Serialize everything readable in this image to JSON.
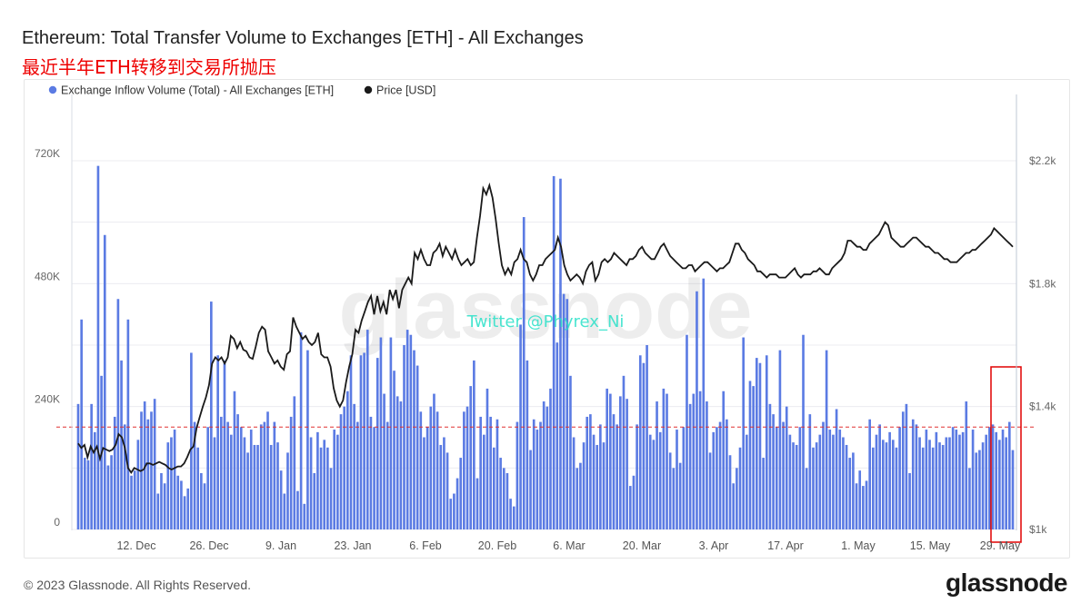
{
  "header": {
    "title": "Ethereum: Total Transfer Volume to Exchanges [ETH] - All Exchanges",
    "subtitle": "最近半年ETH转移到交易所抛压"
  },
  "footer": {
    "copyright": "© 2023 Glassnode. All Rights Reserved.",
    "brand": "glassnode"
  },
  "watermark": {
    "logo": "glassnode",
    "twitter": "Twitter @Phyrex_Ni"
  },
  "colors": {
    "bars": "#5b7be3",
    "price_line": "#1a1a1a",
    "threshold_line": "#e03030",
    "highlight_box": "#e00000",
    "subtitle": "#ee0000",
    "twitter": "#29e0c8"
  },
  "chart_data": {
    "type": "bar+line",
    "legend": [
      {
        "name": "Exchange Inflow Volume (Total) - All Exchanges [ETH]",
        "marker": "circle",
        "color": "#5b7be3"
      },
      {
        "name": "Price [USD]",
        "marker": "circle",
        "color": "#1a1a1a"
      }
    ],
    "legend_position": "top-left",
    "x_ticks": [
      "12. Dec",
      "26. Dec",
      "9. Jan",
      "23. Jan",
      "6. Feb",
      "20. Feb",
      "6. Mar",
      "20. Mar",
      "3. Apr",
      "17. Apr",
      "1. May",
      "15. May",
      "29. May"
    ],
    "x_range": [
      "2022-12-01",
      "2023-06-01"
    ],
    "left_axis": {
      "ticks": [
        0,
        240000,
        480000,
        720000
      ],
      "tick_labels": [
        "0",
        "240K",
        "480K",
        "720K"
      ],
      "range": [
        0,
        720000
      ]
    },
    "right_axis": {
      "ticks": [
        1000,
        1400,
        1800,
        2200
      ],
      "tick_labels": [
        "$1k",
        "$1.4k",
        "$1.8k",
        "$2.2k"
      ],
      "range": [
        1000,
        2200
      ]
    },
    "grid": true,
    "threshold_value": 200000,
    "series": [
      {
        "name": "Exchange Inflow Volume (Total) - All Exchanges [ETH]",
        "kind": "bar",
        "axis": "left",
        "values": [
          245000,
          410000,
          140000,
          135000,
          245000,
          190000,
          710000,
          300000,
          575000,
          125000,
          145000,
          220000,
          450000,
          330000,
          205000,
          410000,
          105000,
          115000,
          175000,
          230000,
          250000,
          215000,
          230000,
          255000,
          70000,
          110000,
          90000,
          170000,
          180000,
          195000,
          105000,
          95000,
          65000,
          80000,
          345000,
          210000,
          160000,
          110000,
          90000,
          200000,
          445000,
          180000,
          340000,
          220000,
          330000,
          210000,
          185000,
          270000,
          225000,
          200000,
          180000,
          150000,
          195000,
          165000,
          165000,
          205000,
          210000,
          230000,
          165000,
          210000,
          170000,
          115000,
          70000,
          150000,
          220000,
          260000,
          75000,
          385000,
          50000,
          350000,
          180000,
          110000,
          190000,
          160000,
          175000,
          160000,
          120000,
          195000,
          185000,
          225000,
          240000,
          270000,
          340000,
          245000,
          210000,
          340000,
          345000,
          390000,
          220000,
          200000,
          335000,
          375000,
          265000,
          210000,
          375000,
          310000,
          260000,
          250000,
          360000,
          390000,
          380000,
          350000,
          320000,
          230000,
          180000,
          200000,
          240000,
          265000,
          230000,
          165000,
          180000,
          150000,
          60000,
          70000,
          100000,
          140000,
          230000,
          240000,
          280000,
          330000,
          100000,
          220000,
          185000,
          275000,
          220000,
          160000,
          215000,
          140000,
          120000,
          110000,
          60000,
          45000,
          210000,
          400000,
          610000,
          330000,
          155000,
          215000,
          195000,
          210000,
          250000,
          240000,
          275000,
          690000,
          365000,
          685000,
          460000,
          450000,
          300000,
          180000,
          120000,
          130000,
          170000,
          220000,
          225000,
          185000,
          165000,
          205000,
          170000,
          275000,
          265000,
          225000,
          205000,
          260000,
          300000,
          255000,
          85000,
          105000,
          205000,
          340000,
          325000,
          360000,
          185000,
          175000,
          250000,
          190000,
          275000,
          265000,
          150000,
          120000,
          195000,
          130000,
          200000,
          380000,
          245000,
          265000,
          465000,
          270000,
          490000,
          250000,
          150000,
          190000,
          200000,
          210000,
          270000,
          215000,
          145000,
          90000,
          120000,
          160000,
          375000,
          185000,
          290000,
          280000,
          335000,
          325000,
          140000,
          340000,
          245000,
          225000,
          200000,
          350000,
          210000,
          240000,
          185000,
          170000,
          165000,
          200000,
          380000,
          120000,
          225000,
          160000,
          170000,
          185000,
          210000,
          350000,
          195000,
          185000,
          235000,
          195000,
          180000,
          165000,
          140000,
          150000,
          90000,
          115000,
          85000,
          95000,
          215000,
          160000,
          185000,
          205000,
          175000,
          170000,
          190000,
          175000,
          160000,
          200000,
          230000,
          245000,
          110000,
          215000,
          205000,
          180000,
          160000,
          195000,
          175000,
          160000,
          190000,
          170000,
          165000,
          180000,
          180000,
          200000,
          195000,
          185000,
          190000,
          250000,
          120000,
          195000,
          150000,
          155000,
          170000,
          185000,
          200000,
          205000,
          190000,
          175000,
          195000,
          180000,
          210000,
          155000
        ],
        "bar_values": [
          245000,
          410000,
          140000,
          135000,
          245000,
          190000,
          710000,
          300000,
          575000,
          125000,
          145000,
          220000,
          450000,
          330000,
          205000,
          410000,
          105000,
          115000,
          175000,
          230000,
          250000,
          215000,
          230000,
          255000,
          70000,
          110000,
          90000,
          170000,
          180000,
          195000,
          105000,
          95000,
          65000,
          80000,
          345000,
          210000,
          160000,
          110000,
          90000,
          200000,
          445000,
          180000,
          340000,
          220000,
          330000,
          210000,
          185000,
          270000,
          225000,
          200000,
          180000,
          150000,
          195000,
          165000,
          165000,
          205000,
          210000,
          230000,
          165000,
          210000,
          170000,
          115000,
          70000,
          150000,
          220000,
          260000,
          75000,
          385000,
          50000,
          350000,
          180000,
          110000,
          190000,
          160000,
          175000,
          160000,
          120000,
          195000,
          185000,
          225000,
          240000,
          270000,
          340000,
          245000,
          210000,
          340000,
          345000,
          390000,
          220000,
          200000,
          335000,
          375000,
          265000,
          210000,
          375000,
          310000,
          260000,
          250000,
          360000,
          390000,
          380000,
          350000,
          320000,
          230000,
          180000,
          200000,
          240000,
          265000,
          230000,
          165000,
          180000,
          150000,
          60000,
          70000,
          100000,
          140000,
          230000,
          240000,
          280000,
          330000,
          100000,
          220000,
          185000,
          275000,
          220000,
          160000,
          215000,
          140000,
          120000,
          110000,
          60000,
          45000,
          210000,
          400000,
          610000,
          330000,
          155000,
          215000,
          195000,
          210000,
          250000,
          240000,
          275000,
          690000,
          365000,
          685000,
          460000,
          450000,
          300000,
          180000,
          120000,
          130000,
          170000,
          220000,
          225000,
          185000,
          165000,
          205000,
          170000,
          275000,
          265000,
          225000,
          205000,
          260000,
          300000,
          255000,
          85000,
          105000,
          205000,
          340000,
          325000,
          360000,
          185000,
          175000,
          250000,
          190000,
          275000,
          265000,
          150000,
          120000,
          195000,
          130000,
          200000,
          380000,
          245000,
          265000,
          465000,
          270000,
          490000,
          250000,
          150000,
          190000,
          200000,
          210000,
          270000,
          215000,
          145000,
          90000,
          120000,
          160000,
          375000,
          185000,
          290000,
          280000,
          335000,
          325000,
          140000,
          340000,
          245000,
          225000,
          200000,
          350000,
          210000,
          240000,
          185000,
          170000,
          165000,
          200000,
          380000,
          120000,
          225000,
          160000,
          170000,
          185000,
          210000,
          350000,
          195000,
          185000,
          235000,
          195000,
          180000,
          165000,
          140000,
          150000,
          90000,
          115000,
          85000,
          95000,
          215000,
          160000,
          185000,
          205000,
          175000,
          170000,
          190000,
          175000,
          160000,
          200000,
          230000,
          245000,
          110000,
          215000,
          205000,
          180000,
          160000,
          195000,
          175000,
          160000,
          190000,
          170000,
          165000,
          180000,
          180000,
          200000,
          195000,
          185000,
          190000,
          250000,
          120000,
          195000,
          150000,
          155000,
          170000,
          185000,
          200000,
          205000,
          190000,
          175000,
          195000,
          180000,
          210000,
          155000
        ]
      },
      {
        "name": "Price [USD]",
        "kind": "line",
        "axis": "right",
        "values": [
          1280,
          1265,
          1275,
          1235,
          1270,
          1250,
          1270,
          1230,
          1265,
          1260,
          1255,
          1260,
          1275,
          1310,
          1300,
          1265,
          1200,
          1185,
          1200,
          1195,
          1190,
          1195,
          1215,
          1215,
          1210,
          1215,
          1220,
          1215,
          1210,
          1200,
          1195,
          1200,
          1205,
          1205,
          1215,
          1235,
          1260,
          1270,
          1330,
          1365,
          1400,
          1430,
          1470,
          1540,
          1560,
          1550,
          1560,
          1540,
          1560,
          1630,
          1620,
          1590,
          1610,
          1585,
          1580,
          1560,
          1555,
          1595,
          1640,
          1660,
          1650,
          1580,
          1560,
          1540,
          1550,
          1530,
          1520,
          1570,
          1580,
          1690,
          1660,
          1640,
          1620,
          1630,
          1610,
          1600,
          1610,
          1640,
          1570,
          1560,
          1560,
          1530,
          1460,
          1420,
          1400,
          1420,
          1480,
          1530,
          1570,
          1650,
          1640,
          1680,
          1710,
          1740,
          1760,
          1700,
          1760,
          1710,
          1740,
          1700,
          1780,
          1750,
          1780,
          1720,
          1780,
          1800,
          1820,
          1800,
          1900,
          1880,
          1910,
          1880,
          1860,
          1860,
          1900,
          1910,
          1930,
          1890,
          1920,
          1900,
          1880,
          1910,
          1880,
          1860,
          1870,
          1880,
          1860,
          1870,
          1950,
          2020,
          2110,
          2090,
          2120,
          2080,
          2010,
          1930,
          1860,
          1830,
          1850,
          1830,
          1870,
          1880,
          1910,
          1880,
          1870,
          1830,
          1810,
          1830,
          1860,
          1860,
          1880,
          1890,
          1900,
          1910,
          1950,
          1920,
          1860,
          1830,
          1810,
          1820,
          1830,
          1820,
          1800,
          1840,
          1860,
          1870,
          1810,
          1830,
          1870,
          1880,
          1870,
          1880,
          1900,
          1890,
          1880,
          1870,
          1860,
          1880,
          1880,
          1890,
          1910,
          1920,
          1900,
          1890,
          1880,
          1880,
          1900,
          1920,
          1930,
          1910,
          1890,
          1880,
          1870,
          1860,
          1850,
          1850,
          1860,
          1860,
          1840,
          1850,
          1860,
          1870,
          1870,
          1860,
          1850,
          1840,
          1850,
          1850,
          1860,
          1870,
          1900,
          1930,
          1930,
          1910,
          1900,
          1880,
          1870,
          1860,
          1840,
          1840,
          1830,
          1820,
          1830,
          1830,
          1830,
          1820,
          1820,
          1820,
          1830,
          1840,
          1850,
          1830,
          1820,
          1830,
          1830,
          1830,
          1840,
          1840,
          1850,
          1840,
          1830,
          1830,
          1850,
          1860,
          1870,
          1880,
          1900,
          1940,
          1940,
          1930,
          1920,
          1920,
          1910,
          1910,
          1930,
          1940,
          1950,
          1960,
          1980,
          2000,
          1990,
          1950,
          1940,
          1930,
          1920,
          1920,
          1930,
          1940,
          1950,
          1950,
          1940,
          1930,
          1920,
          1920,
          1910,
          1900,
          1900,
          1890,
          1880,
          1880,
          1870,
          1870,
          1870,
          1880,
          1890,
          1900,
          1900,
          1910,
          1910,
          1920,
          1930,
          1940,
          1950,
          1960,
          1980,
          1970,
          1960,
          1950,
          1940,
          1930,
          1920
        ]
      }
    ],
    "note_threshold": "dashed red horizontal line",
    "annotation": "red box around last bars"
  }
}
